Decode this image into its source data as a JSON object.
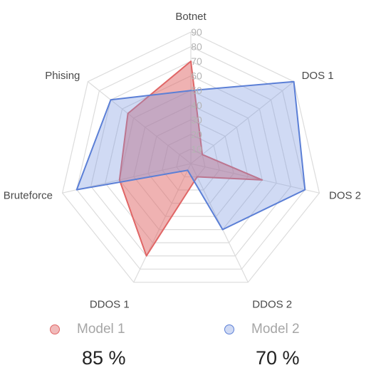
{
  "chart_data": {
    "type": "radar",
    "axes": [
      "Botnet",
      "DOS 1",
      "DOS 2",
      "DDOS 2",
      "DDOS 1",
      "Bruteforce",
      "Phising"
    ],
    "ticks": [
      10,
      20,
      30,
      40,
      50,
      60,
      70,
      80,
      90
    ],
    "rlim": [
      0,
      90
    ],
    "grid": true,
    "legend_position": "bottom",
    "series": [
      {
        "name": "Model 1",
        "values": [
          70,
          10,
          50,
          10,
          70,
          50,
          55
        ],
        "color": "#e06666",
        "fill": "rgba(224,102,102,0.5)"
      },
      {
        "name": "Model 2",
        "values": [
          50,
          90,
          80,
          50,
          5,
          80,
          70
        ],
        "color": "#5b7fd6",
        "fill": "rgba(120,148,224,0.35)"
      }
    ]
  },
  "summary": [
    {
      "label": "Model 1",
      "value": "85 %"
    },
    {
      "label": "Model 2",
      "value": "70 %"
    }
  ]
}
